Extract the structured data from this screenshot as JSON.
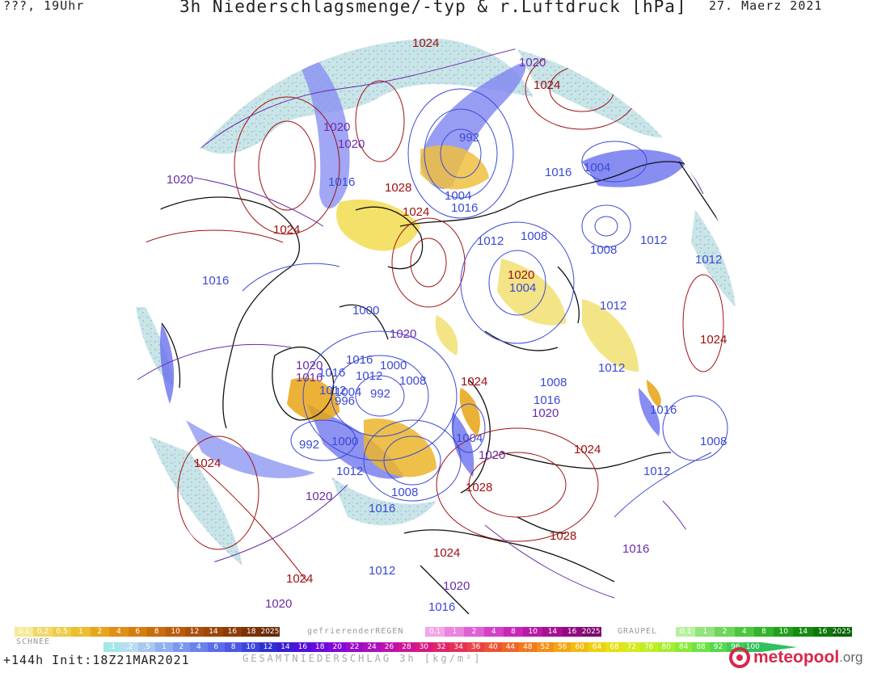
{
  "header": {
    "left": "???, 19Uhr",
    "title": "3h Niederschlagsmenge/-typ & r.Luftdruck [hPa]",
    "date": "27. Maerz 2021"
  },
  "footer": {
    "run": "+144h  Init:18Z21MAR2021",
    "total_caption": "GESAMTNIEDERSCHLAG 3h [kg/m²]",
    "logo_main": "meteo",
    "logo_accent": "pool",
    "logo_tld": ".org"
  },
  "colors": {
    "land": "#ffffff",
    "coast": "#111111",
    "low_isobar": "#3a49d6",
    "mid_isobar": "#6a2da8",
    "high_isobar": "#a01010",
    "snow": "#e8a414",
    "rain": "#6a70ef",
    "freezing_rain": "#d04ac0"
  },
  "legends": {
    "snow": {
      "caption": "SCHNEE",
      "labels": [
        "0.1",
        "0.2",
        "0.5",
        "1",
        "2",
        "4",
        "6",
        "8",
        "10",
        "12",
        "14",
        "16",
        "18",
        "2025+"
      ],
      "colors": [
        "#f7e99a",
        "#f2d86a",
        "#efcc4a",
        "#ecbe30",
        "#e6a61c",
        "#df9016",
        "#d47e12",
        "#c86c0e",
        "#ba5c0c",
        "#aa500a",
        "#9c4608",
        "#8e3c06",
        "#7c3204",
        "#6a2a02"
      ]
    },
    "freezing": {
      "caption": "gefrierenderREGEN",
      "labels": [
        "0.1",
        "1",
        "2",
        "4",
        "8",
        "10",
        "14",
        "16",
        "2025+"
      ],
      "colors": [
        "#f2a6e8",
        "#ea84e0",
        "#e060d6",
        "#d440c8",
        "#c828b8",
        "#b81aa6",
        "#a61092",
        "#920a80",
        "#7e066e"
      ]
    },
    "graupel": {
      "caption": "GRAUPEL",
      "labels": [
        "0.1",
        "1",
        "2",
        "4",
        "8",
        "10",
        "14",
        "16",
        "2025+"
      ],
      "colors": [
        "#b8f0a0",
        "#94e47c",
        "#6ed65a",
        "#4ec63e",
        "#34b42a",
        "#22a01c",
        "#168c12",
        "#0e780a",
        "#086404"
      ]
    },
    "total": {
      "labels": [
        ".1",
        ".2",
        ".5",
        "1",
        "2",
        "4",
        "6",
        "8",
        "10",
        "12",
        "14",
        "16",
        "18",
        "20",
        "22",
        "24",
        "26",
        "28",
        "30",
        "32",
        "34",
        "36",
        "40",
        "44",
        "48",
        "52",
        "56",
        "60",
        "64",
        "68",
        "72",
        "76",
        "80",
        "84",
        "88",
        "92",
        "96",
        "100"
      ],
      "colors": [
        "#a2e6e6",
        "#b8dcf0",
        "#a8c8f0",
        "#90b0f0",
        "#7c98ee",
        "#6a82ec",
        "#5a6cea",
        "#4c58e4",
        "#3c44dc",
        "#3030d0",
        "#3a1ed6",
        "#5010dc",
        "#6a0ae0",
        "#8208d8",
        "#980ccc",
        "#ac10bc",
        "#be12aa",
        "#cc1696",
        "#d81a80",
        "#e0246c",
        "#e63058",
        "#ea4046",
        "#ee5236",
        "#f06628",
        "#f27a1e",
        "#f49016",
        "#f4a612",
        "#f2bc10",
        "#eed012",
        "#e6e016",
        "#d6ea1c",
        "#c0ee24",
        "#a6ee2e",
        "#8aea38",
        "#6ee242",
        "#54d84c",
        "#40cc56",
        "#30c05e"
      ]
    }
  },
  "isobar_labels": [
    {
      "text": "1024",
      "kind": "high"
    },
    {
      "text": "1020",
      "kind": "mid"
    },
    {
      "text": "1024",
      "kind": "high"
    },
    {
      "text": "1020",
      "kind": "mid"
    },
    {
      "text": "1020",
      "kind": "mid"
    },
    {
      "text": "992",
      "kind": "low"
    },
    {
      "text": "1020",
      "kind": "mid"
    },
    {
      "text": "1016",
      "kind": "low"
    },
    {
      "text": "1028",
      "kind": "high"
    },
    {
      "text": "1004",
      "kind": "low"
    },
    {
      "text": "1016",
      "kind": "low"
    },
    {
      "text": "1024",
      "kind": "high"
    },
    {
      "text": "1016",
      "kind": "low"
    },
    {
      "text": "1004",
      "kind": "low"
    },
    {
      "text": "1024",
      "kind": "high"
    },
    {
      "text": "1012",
      "kind": "low"
    },
    {
      "text": "1008",
      "kind": "low"
    },
    {
      "text": "1008",
      "kind": "low"
    },
    {
      "text": "1012",
      "kind": "low"
    },
    {
      "text": "1016",
      "kind": "low"
    },
    {
      "text": "1012",
      "kind": "low"
    },
    {
      "text": "1020",
      "kind": "high"
    },
    {
      "text": "1004",
      "kind": "low"
    },
    {
      "text": "1000",
      "kind": "low"
    },
    {
      "text": "1012",
      "kind": "low"
    },
    {
      "text": "1012",
      "kind": "low"
    },
    {
      "text": "1020",
      "kind": "mid"
    },
    {
      "text": "1024",
      "kind": "high"
    },
    {
      "text": "1016",
      "kind": "low"
    },
    {
      "text": "1016",
      "kind": "low"
    },
    {
      "text": "1000",
      "kind": "low"
    },
    {
      "text": "1020",
      "kind": "mid"
    },
    {
      "text": "1016",
      "kind": "mid"
    },
    {
      "text": "1012",
      "kind": "low"
    },
    {
      "text": "1008",
      "kind": "low"
    },
    {
      "text": "1012",
      "kind": "low"
    },
    {
      "text": "1004",
      "kind": "low"
    },
    {
      "text": "992",
      "kind": "low"
    },
    {
      "text": "1024",
      "kind": "high"
    },
    {
      "text": "996",
      "kind": "low"
    },
    {
      "text": "1008",
      "kind": "low"
    },
    {
      "text": "1016",
      "kind": "low"
    },
    {
      "text": "1020",
      "kind": "mid"
    },
    {
      "text": "1016",
      "kind": "low"
    },
    {
      "text": "992",
      "kind": "low"
    },
    {
      "text": "1000",
      "kind": "low"
    },
    {
      "text": "1004",
      "kind": "low"
    },
    {
      "text": "1024",
      "kind": "high"
    },
    {
      "text": "1008",
      "kind": "low"
    },
    {
      "text": "1020",
      "kind": "mid"
    },
    {
      "text": "1012",
      "kind": "low"
    },
    {
      "text": "1024",
      "kind": "high"
    },
    {
      "text": "1012",
      "kind": "low"
    },
    {
      "text": "1008",
      "kind": "low"
    },
    {
      "text": "1028",
      "kind": "high"
    },
    {
      "text": "1020",
      "kind": "mid"
    },
    {
      "text": "1016",
      "kind": "low"
    },
    {
      "text": "1028",
      "kind": "high"
    },
    {
      "text": "1024",
      "kind": "high"
    },
    {
      "text": "1016",
      "kind": "mid"
    },
    {
      "text": "1024",
      "kind": "high"
    },
    {
      "text": "1012",
      "kind": "low"
    },
    {
      "text": "1020",
      "kind": "mid"
    },
    {
      "text": "1020",
      "kind": "mid"
    },
    {
      "text": "1016",
      "kind": "low"
    }
  ]
}
